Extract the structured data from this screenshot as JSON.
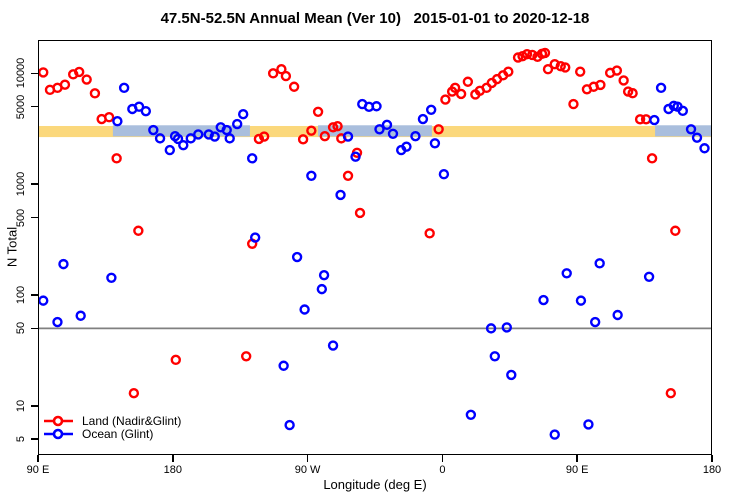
{
  "chart_data": {
    "type": "scatter",
    "title": "47.5N-52.5N Annual Mean (Ver 10)   2015-01-01 to 2020-12-18",
    "xlabel": "Longitude (deg E)",
    "ylabel": "N Total",
    "x_axis": {
      "min": 90,
      "max": 540,
      "tick_lons": [
        90,
        180,
        270,
        360,
        450,
        540
      ],
      "tick_labels": [
        "90 E",
        "180",
        "90 W",
        "0",
        "90 E",
        "180"
      ]
    },
    "y_axis": {
      "scale": "log",
      "render_min": 3.6,
      "render_max": 20000,
      "ticks": [
        10000,
        5000,
        1000,
        500,
        100,
        50,
        10,
        5
      ],
      "tick_labels": [
        "10000",
        "5000",
        "1000",
        "500",
        "100",
        "50",
        "10",
        "5"
      ]
    },
    "reference_line": {
      "value": 50,
      "color": "#808080"
    },
    "mean_bands": {
      "land": {
        "color": "#FBD87C",
        "value_low": 2660,
        "value_high": 3350,
        "lon_from": 90,
        "lon_to": 540
      },
      "ocean": {
        "color": "#A9BEDD",
        "value_low": 2700,
        "value_high": 3400,
        "segments": [
          [
            140,
            231.5
          ],
          [
            277,
            353
          ],
          [
            502,
            540
          ]
        ]
      }
    },
    "legend": {
      "position": "bottom-left",
      "entries": [
        {
          "label": "Land (Nadir&Glint)",
          "color": "#FF0000"
        },
        {
          "label": "Ocean (Glint)",
          "color": "#0000FF"
        }
      ]
    },
    "series": [
      {
        "name": "Land (Nadir&Glint)",
        "color": "#FF0000",
        "marker": "open-circle",
        "points": [
          [
            93.5,
            10200
          ],
          [
            98,
            7100
          ],
          [
            103,
            7400
          ],
          [
            108,
            7900
          ],
          [
            113.5,
            9800
          ],
          [
            117.5,
            10300
          ],
          [
            122.5,
            8800
          ],
          [
            128,
            6600
          ],
          [
            132.5,
            3870
          ],
          [
            137.5,
            4020
          ],
          [
            142.5,
            1710
          ],
          [
            154,
            13
          ],
          [
            157,
            380
          ],
          [
            182,
            26
          ],
          [
            229,
            28
          ],
          [
            233,
            290
          ],
          [
            237.5,
            2560
          ],
          [
            241,
            2690
          ],
          [
            247,
            10000
          ],
          [
            252.5,
            10900
          ],
          [
            255.5,
            9450
          ],
          [
            261,
            7570
          ],
          [
            267,
            2540
          ],
          [
            272.5,
            3040
          ],
          [
            277,
            4500
          ],
          [
            281.5,
            2710
          ],
          [
            287,
            3260
          ],
          [
            290,
            3340
          ],
          [
            292.5,
            2590
          ],
          [
            297,
            1190
          ],
          [
            303,
            1920
          ],
          [
            305,
            550
          ],
          [
            351.5,
            360
          ],
          [
            357.5,
            3130
          ],
          [
            362,
            5800
          ],
          [
            366.5,
            6850
          ],
          [
            368.5,
            7400
          ],
          [
            372.5,
            6520
          ],
          [
            377,
            8400
          ],
          [
            382,
            6450
          ],
          [
            385,
            6960
          ],
          [
            389.5,
            7400
          ],
          [
            393,
            8200
          ],
          [
            396.5,
            8870
          ],
          [
            400.5,
            9600
          ],
          [
            404,
            10350
          ],
          [
            410.5,
            13900
          ],
          [
            413.5,
            14300
          ],
          [
            416.5,
            14900
          ],
          [
            420,
            14650
          ],
          [
            423.5,
            14100
          ],
          [
            426.5,
            15000
          ],
          [
            428.5,
            15300
          ],
          [
            430.5,
            10900
          ],
          [
            435,
            12100
          ],
          [
            439,
            11600
          ],
          [
            442,
            11300
          ],
          [
            447.5,
            5280
          ],
          [
            452,
            10350
          ],
          [
            456.5,
            7180
          ],
          [
            461,
            7570
          ],
          [
            465.5,
            7870
          ],
          [
            472,
            10100
          ],
          [
            476.5,
            10600
          ],
          [
            481,
            8630
          ],
          [
            484,
            6850
          ],
          [
            487,
            6620
          ],
          [
            492,
            3850
          ],
          [
            496,
            3850
          ],
          [
            500,
            1710
          ],
          [
            512.5,
            13
          ],
          [
            515.5,
            380
          ]
        ]
      },
      {
        "name": "Ocean (Glint)",
        "color": "#0000FF",
        "marker": "open-circle",
        "points": [
          [
            93.5,
            89
          ],
          [
            103,
            57
          ],
          [
            107,
            190
          ],
          [
            118.5,
            65
          ],
          [
            139,
            143
          ],
          [
            143,
            3700
          ],
          [
            147.5,
            7400
          ],
          [
            153,
            4770
          ],
          [
            157.5,
            5000
          ],
          [
            162,
            4560
          ],
          [
            167,
            3080
          ],
          [
            171.5,
            2590
          ],
          [
            178,
            2030
          ],
          [
            181.5,
            2710
          ],
          [
            183.5,
            2560
          ],
          [
            187,
            2250
          ],
          [
            192,
            2590
          ],
          [
            197,
            2810
          ],
          [
            204,
            2810
          ],
          [
            208,
            2690
          ],
          [
            212,
            3260
          ],
          [
            216,
            3080
          ],
          [
            218,
            2590
          ],
          [
            223,
            3490
          ],
          [
            227,
            4280
          ],
          [
            233,
            1710
          ],
          [
            235,
            330
          ],
          [
            254,
            23
          ],
          [
            258,
            6.7
          ],
          [
            263,
            220
          ],
          [
            268,
            74
          ],
          [
            272.5,
            1190
          ],
          [
            279.5,
            113
          ],
          [
            281,
            151
          ],
          [
            287,
            35
          ],
          [
            292,
            800
          ],
          [
            297,
            2690
          ],
          [
            302,
            1770
          ],
          [
            306.5,
            5280
          ],
          [
            311,
            4990
          ],
          [
            316,
            5050
          ],
          [
            318,
            3130
          ],
          [
            323,
            3430
          ],
          [
            327,
            2850
          ],
          [
            332.5,
            2030
          ],
          [
            336,
            2180
          ],
          [
            342,
            2710
          ],
          [
            347,
            3870
          ],
          [
            352.5,
            4690
          ],
          [
            355,
            2340
          ],
          [
            361,
            1230
          ],
          [
            379,
            8.3
          ],
          [
            392.5,
            50
          ],
          [
            395,
            28
          ],
          [
            403,
            51
          ],
          [
            406,
            19
          ],
          [
            427.5,
            90
          ],
          [
            435,
            5.5
          ],
          [
            443,
            157
          ],
          [
            452.5,
            89
          ],
          [
            457.5,
            6.8
          ],
          [
            462,
            57
          ],
          [
            465,
            193
          ],
          [
            477,
            66
          ],
          [
            498,
            146
          ],
          [
            501.5,
            3790
          ],
          [
            506,
            7400
          ],
          [
            511,
            4770
          ],
          [
            514.5,
            5100
          ],
          [
            517,
            5000
          ],
          [
            520.5,
            4590
          ],
          [
            526,
            3130
          ],
          [
            530,
            2630
          ],
          [
            535,
            2110
          ]
        ]
      }
    ]
  }
}
